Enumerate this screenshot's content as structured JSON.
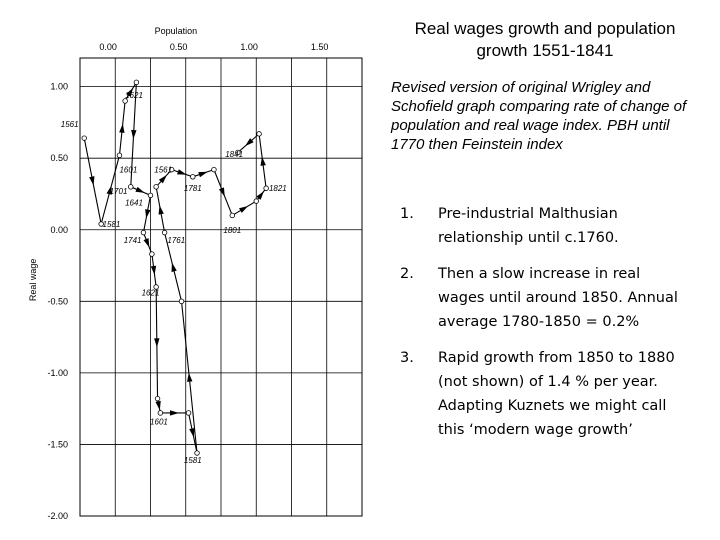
{
  "title": "Real wages growth and population growth 1551-1841",
  "description": "Revised version of original Wrigley and Schofield graph comparing rate of change of population and real wage index.  PBH until 1770 then Feinstein index",
  "points": [
    {
      "num": "1.",
      "text": "Pre-industrial Malthusian relationship until c.1760."
    },
    {
      "num": "2.",
      "text": "Then a slow increase in real wages until around 1850. Annual average 1780-1850 = 0.2%"
    },
    {
      "num": "3.",
      "text": "Rapid growth from 1850 to 1880 (not shown) of 1.4 % per year.  Adapting Kuznets we might call this ‘modern wage growth’"
    }
  ],
  "chart_data": {
    "type": "line",
    "xlabel": "Population",
    "ylabel": "Real wage",
    "x_position": "top",
    "xlim": [
      -0.2,
      1.8
    ],
    "ylim": [
      -2.0,
      1.2
    ],
    "xticks": [
      0.0,
      0.5,
      1.0,
      1.5
    ],
    "xtick_labels": [
      "0.00",
      "0.50",
      "1.00",
      "1.50"
    ],
    "yticks": [
      1.0,
      0.5,
      0.0,
      -0.5,
      -1.0,
      -1.5,
      -2.0
    ],
    "ytick_labels": [
      "1.00",
      "0.50",
      "0.00",
      "-0.50",
      "-1.00",
      "-1.50",
      "-2.00"
    ],
    "grid": true,
    "points": [
      {
        "x": -0.17,
        "y": 0.64,
        "label": "1561"
      },
      {
        "x": -0.05,
        "y": 0.04,
        "label": "1581"
      },
      {
        "x": 0.08,
        "y": 0.52,
        "label": "1601"
      },
      {
        "x": 0.12,
        "y": 0.9,
        "label": "1621"
      },
      {
        "x": 0.2,
        "y": 1.03,
        "label": ""
      },
      {
        "x": 0.16,
        "y": 0.3,
        "label": "1701"
      },
      {
        "x": 0.3,
        "y": 0.24,
        "label": "1641"
      },
      {
        "x": 0.25,
        "y": -0.02,
        "label": "1741"
      },
      {
        "x": 0.31,
        "y": -0.17,
        "label": ""
      },
      {
        "x": 0.4,
        "y": -0.02,
        "label": "1761"
      },
      {
        "x": 0.34,
        "y": 0.3,
        "label": "1561"
      },
      {
        "x": 0.45,
        "y": 0.42,
        "label": ""
      },
      {
        "x": 0.6,
        "y": 0.37,
        "label": "1781"
      },
      {
        "x": 0.75,
        "y": 0.42,
        "label": ""
      },
      {
        "x": 0.88,
        "y": 0.1,
        "label": "1801"
      },
      {
        "x": 1.05,
        "y": 0.2,
        "label": ""
      },
      {
        "x": 1.12,
        "y": 0.29,
        "label": "1821"
      },
      {
        "x": 1.07,
        "y": 0.67,
        "label": ""
      },
      {
        "x": 0.92,
        "y": 0.54,
        "label": "1841"
      }
    ],
    "path": [
      [
        -0.17,
        0.64
      ],
      [
        -0.05,
        0.04
      ],
      [
        0.08,
        0.52
      ],
      [
        0.12,
        0.9
      ],
      [
        0.2,
        1.03
      ],
      [
        0.16,
        0.3
      ],
      [
        0.3,
        0.24
      ],
      [
        0.25,
        -0.02
      ],
      [
        0.31,
        -0.17
      ],
      [
        0.34,
        -0.4
      ],
      [
        0.35,
        -1.18
      ],
      [
        0.37,
        -1.28
      ],
      [
        0.57,
        -1.28
      ],
      [
        0.63,
        -1.56
      ],
      [
        0.52,
        -0.5
      ],
      [
        0.4,
        -0.02
      ],
      [
        0.34,
        0.3
      ],
      [
        0.45,
        0.42
      ],
      [
        0.6,
        0.37
      ],
      [
        0.75,
        0.42
      ],
      [
        0.88,
        0.1
      ],
      [
        1.05,
        0.2
      ],
      [
        1.12,
        0.29
      ],
      [
        1.07,
        0.67
      ],
      [
        0.92,
        0.54
      ]
    ],
    "extra_labels": [
      {
        "x": 0.3,
        "y": -0.46,
        "label": "1621"
      },
      {
        "x": 0.36,
        "y": -1.36,
        "label": "1601"
      },
      {
        "x": 0.6,
        "y": -1.63,
        "label": "1581"
      }
    ]
  }
}
